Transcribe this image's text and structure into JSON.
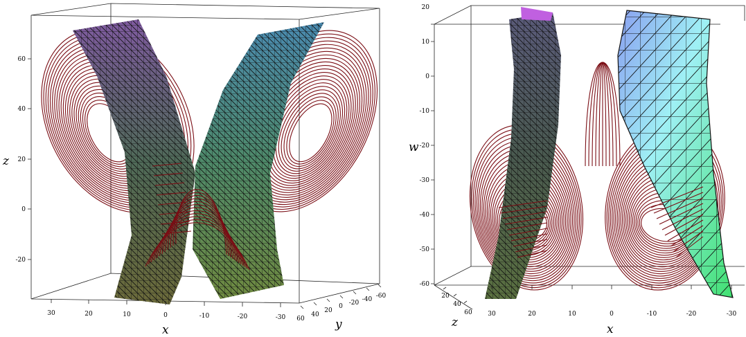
{
  "chart_data": [
    {
      "type": "3d-surface-trajectory",
      "title": "",
      "axes": {
        "z": {
          "label": "z",
          "ticks": [
            "60",
            "40",
            "20",
            "0",
            "-20"
          ]
        },
        "x": {
          "label": "x",
          "ticks": [
            "30",
            "20",
            "10",
            "0",
            "-10",
            "-20",
            "-30"
          ]
        },
        "y": {
          "label": "y",
          "ticks": [
            "60",
            "40",
            "20",
            "0",
            "-20",
            "-40",
            "-60"
          ]
        }
      },
      "colors": {
        "trajectory": "#7a0d14",
        "mesh": "#111111"
      }
    },
    {
      "type": "3d-surface-trajectory",
      "title": "",
      "axes": {
        "w": {
          "label": "w",
          "ticks": [
            "20",
            "10",
            "0",
            "-10",
            "-20",
            "-30",
            "-40",
            "-50",
            "-60"
          ]
        },
        "x": {
          "label": "x",
          "ticks": [
            "30",
            "20",
            "10",
            "0",
            "-10",
            "-20",
            "-30"
          ]
        },
        "z": {
          "label": "z",
          "ticks": [
            "60",
            "40",
            "20"
          ]
        }
      },
      "colors": {
        "trajectory": "#7a0d14",
        "mesh": "#111111"
      }
    }
  ]
}
